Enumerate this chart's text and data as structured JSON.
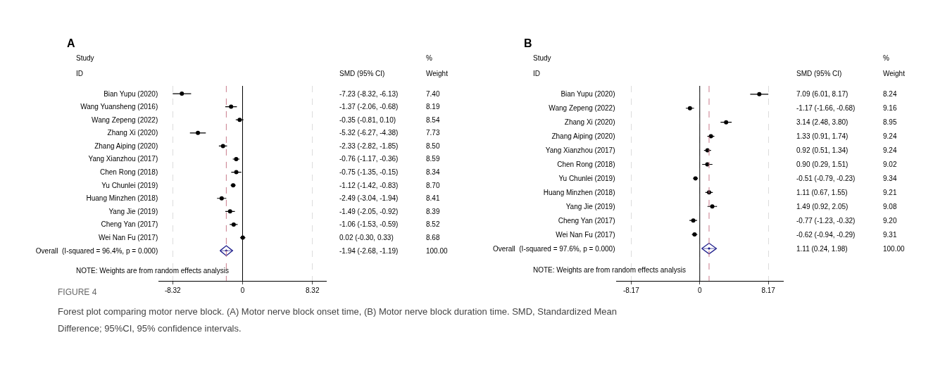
{
  "chart_data": [
    {
      "type": "scatter",
      "title": "A",
      "orientation": "horizontal",
      "categories": [
        "Bian Yupu (2020)",
        "Wang Yuansheng (2016)",
        "Wang Zepeng (2022)",
        "Zhang Xi (2020)",
        "Zhang Aiping (2020)",
        "Yang Xianzhou (2017)",
        "Chen Rong (2018)",
        "Yu Chunlei (2019)",
        "Huang Minzhen (2018)",
        "Yang Jie (2019)",
        "Cheng Yan (2017)",
        "Wei Nan Fu (2017)",
        "Overall  (I-squared = 96.4%, p = 0.000)"
      ],
      "series": [
        {
          "color": "#000000",
          "marker": "circle",
          "values": [
            -7.23,
            -1.37,
            -0.35,
            -5.32,
            -2.33,
            -0.76,
            -0.75,
            -1.12,
            -2.49,
            -1.49,
            -1.06,
            0.02,
            null
          ],
          "errors": [
            [
              -8.32,
              -6.13
            ],
            [
              -2.06,
              -0.68
            ],
            [
              -0.81,
              0.1
            ],
            [
              -6.27,
              -4.38
            ],
            [
              -2.82,
              -1.85
            ],
            [
              -1.17,
              -0.36
            ],
            [
              -1.35,
              -0.15
            ],
            [
              -1.42,
              -0.83
            ],
            [
              -3.04,
              -1.94
            ],
            [
              -2.05,
              -0.92
            ],
            [
              -1.53,
              -0.59
            ],
            [
              -0.3,
              0.33
            ],
            null
          ]
        },
        {
          "color": "#1f1f8c",
          "marker": "diamond",
          "values": [
            null,
            null,
            null,
            null,
            null,
            null,
            null,
            null,
            null,
            null,
            null,
            null,
            -1.94
          ],
          "errors": [
            null,
            null,
            null,
            null,
            null,
            null,
            null,
            null,
            null,
            null,
            null,
            null,
            [
              -2.68,
              -1.19
            ]
          ]
        }
      ],
      "xlim": [
        -10,
        10
      ],
      "xticks": [
        -8.32,
        0,
        8.32
      ],
      "grid": "x",
      "ref_lines": [
        {
          "axis": "x",
          "value": 0,
          "color": "#000000",
          "line_style": "solid"
        },
        {
          "axis": "x",
          "value": -1.94,
          "color": "#c97a8a",
          "line_style": "dashed"
        }
      ],
      "annotations": [
        "Study",
        "ID",
        "SMD (95% CI)",
        "%",
        "Weight",
        "NOTE: Weights are from random effects analysis",
        "-7.23 (-8.32, -6.13)",
        "-1.37 (-2.06, -0.68)",
        "-0.35 (-0.81, 0.10)",
        "-5.32 (-6.27, -4.38)",
        "-2.33 (-2.82, -1.85)",
        "-0.76 (-1.17, -0.36)",
        "-0.75 (-1.35, -0.15)",
        "-1.12 (-1.42, -0.83)",
        "-2.49 (-3.04, -1.94)",
        "-1.49 (-2.05, -0.92)",
        "-1.06 (-1.53, -0.59)",
        "0.02 (-0.30, 0.33)",
        "-1.94 (-2.68, -1.19)",
        "7.40",
        "8.19",
        "8.54",
        "7.73",
        "8.50",
        "8.59",
        "8.34",
        "8.70",
        "8.41",
        "8.39",
        "8.52",
        "8.68",
        "100.00",
        "FIGURE 4",
        "Forest plot comparing motor nerve block. (A) Motor nerve block onset time, (B) Motor nerve block duration time. SMD, Standardized Mean",
        "Difference; 95%CI, 95% confidence intervals."
      ]
    },
    {
      "type": "scatter",
      "title": "B",
      "orientation": "horizontal",
      "categories": [
        "Bian Yupu (2020)",
        "Wang Zepeng (2022)",
        "Zhang Xi (2020)",
        "Zhang Aiping (2020)",
        "Yang Xianzhou (2017)",
        "Chen Rong (2018)",
        "Yu Chunlei (2019)",
        "Huang Minzhen (2018)",
        "Yang Jie (2019)",
        "Cheng Yan (2017)",
        "Wei Nan Fu (2017)",
        "Overall  (I-squared = 97.6%, p = 0.000)"
      ],
      "series": [
        {
          "color": "#000000",
          "marker": "circle",
          "values": [
            7.09,
            -1.17,
            3.14,
            1.33,
            0.92,
            0.9,
            -0.51,
            1.11,
            1.49,
            -0.77,
            -0.62,
            null
          ],
          "errors": [
            [
              6.01,
              8.17
            ],
            [
              -1.66,
              -0.68
            ],
            [
              2.48,
              3.8
            ],
            [
              0.91,
              1.74
            ],
            [
              0.51,
              1.34
            ],
            [
              0.29,
              1.51
            ],
            [
              -0.79,
              -0.23
            ],
            [
              0.67,
              1.55
            ],
            [
              0.92,
              2.05
            ],
            [
              -1.23,
              -0.32
            ],
            [
              -0.94,
              -0.29
            ],
            null
          ]
        },
        {
          "color": "#1f1f8c",
          "marker": "diamond",
          "values": [
            null,
            null,
            null,
            null,
            null,
            null,
            null,
            null,
            null,
            null,
            null,
            1.11
          ],
          "errors": [
            null,
            null,
            null,
            null,
            null,
            null,
            null,
            null,
            null,
            null,
            null,
            [
              0.24,
              1.98
            ]
          ]
        }
      ],
      "xlim": [
        -10,
        10
      ],
      "xticks": [
        -8.17,
        0,
        8.17
      ],
      "grid": "x",
      "ref_lines": [
        {
          "axis": "x",
          "value": 0,
          "color": "#000000",
          "line_style": "solid"
        },
        {
          "axis": "x",
          "value": 1.11,
          "color": "#c97a8a",
          "line_style": "dashed"
        }
      ],
      "annotations": [
        "Study",
        "ID",
        "SMD (95% CI)",
        "%",
        "Weight",
        "NOTE: Weights are from random effects analysis",
        "7.09 (6.01, 8.17)",
        "-1.17 (-1.66, -0.68)",
        "3.14 (2.48, 3.80)",
        "1.33 (0.91, 1.74)",
        "0.92 (0.51, 1.34)",
        "0.90 (0.29, 1.51)",
        "-0.51 (-0.79, -0.23)",
        "1.11 (0.67, 1.55)",
        "1.49 (0.92, 2.05)",
        "-0.77 (-1.23, -0.32)",
        "-0.62 (-0.94, -0.29)",
        "1.11 (0.24, 1.98)",
        "8.24",
        "9.16",
        "8.95",
        "9.24",
        "9.24",
        "9.02",
        "9.34",
        "9.21",
        "9.08",
        "9.20",
        "9.31",
        "100.00"
      ]
    }
  ]
}
